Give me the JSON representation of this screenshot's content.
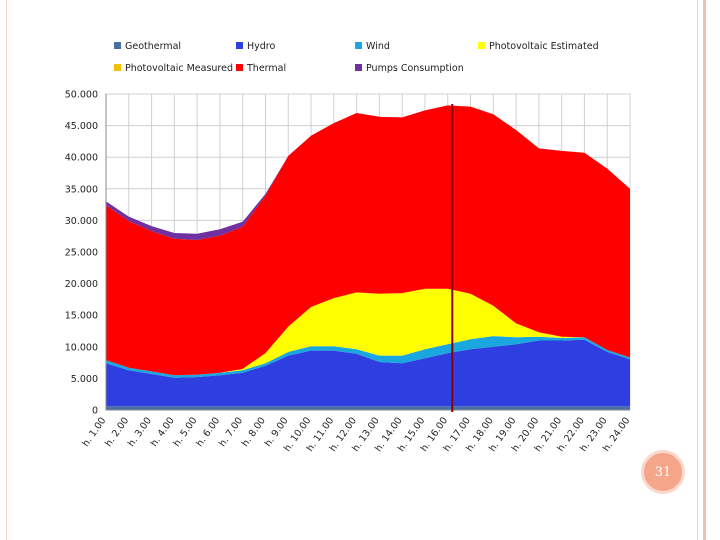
{
  "page_number": "31",
  "chart_data": {
    "type": "area",
    "stacked": true,
    "ylim": [
      0,
      50000
    ],
    "y_ticks": [
      "0",
      "5.000",
      "10.000",
      "15.000",
      "20.000",
      "25.000",
      "30.000",
      "35.000",
      "40.000",
      "45.000",
      "50.000"
    ],
    "y_tick_values": [
      0,
      5000,
      10000,
      15000,
      20000,
      25000,
      30000,
      35000,
      40000,
      45000,
      50000
    ],
    "x_labels": [
      "h. 1.00",
      "h. 2.00",
      "h. 3.00",
      "h. 4.00",
      "h. 5.00",
      "h. 6.00",
      "h. 7.00",
      "h. 8.00",
      "h. 9.00",
      "h. 10.00",
      "h. 11.00",
      "h. 12.00",
      "h. 13.00",
      "h. 14.00",
      "h. 15.00",
      "h. 16.00",
      "h. 17.00",
      "h. 18.00",
      "h. 19.00",
      "h. 20.00",
      "h. 21.00",
      "h. 22.00",
      "h. 23.00",
      "h. 24.00"
    ],
    "x": [
      1,
      2,
      3,
      4,
      5,
      6,
      7,
      8,
      9,
      10,
      11,
      12,
      13,
      14,
      15,
      16,
      17,
      18,
      19,
      20,
      21,
      22,
      23,
      24
    ],
    "marker_line_x": 16.2,
    "marker_color": "#8b0000",
    "grid": true,
    "legend": [
      {
        "name": "Geothermal",
        "color": "#4a6fa5"
      },
      {
        "name": "Hydro",
        "color": "#2f3ee0"
      },
      {
        "name": "Wind",
        "color": "#1aa7e0"
      },
      {
        "name": "Photovoltaic Estimated",
        "color": "#ffff00"
      },
      {
        "name": "Photovoltaic Measured",
        "color": "#f2c200"
      },
      {
        "name": "Thermal",
        "color": "#ff0000"
      },
      {
        "name": "Pumps Consumption",
        "color": "#7030a0"
      }
    ],
    "series": [
      {
        "name": "Geothermal",
        "color": "#4a6fa5",
        "values": [
          600,
          600,
          600,
          600,
          600,
          600,
          600,
          600,
          600,
          600,
          600,
          600,
          600,
          600,
          600,
          600,
          600,
          600,
          600,
          600,
          600,
          600,
          600,
          600
        ]
      },
      {
        "name": "Hydro",
        "color": "#2f3ee0",
        "values": [
          6800,
          5700,
          5100,
          4500,
          4600,
          4900,
          5300,
          6400,
          8000,
          8800,
          8800,
          8300,
          7000,
          6800,
          7600,
          8400,
          9000,
          9400,
          9800,
          10400,
          10400,
          10500,
          8600,
          7400
        ]
      },
      {
        "name": "Wind",
        "color": "#1aa7e0",
        "values": [
          500,
          400,
          400,
          400,
          400,
          400,
          400,
          400,
          600,
          700,
          700,
          700,
          1000,
          1200,
          1400,
          1400,
          1600,
          1700,
          1100,
          600,
          400,
          400,
          300,
          300
        ]
      },
      {
        "name": "Photovoltaic Estimated",
        "color": "#ffff00",
        "values": [
          0,
          0,
          0,
          0,
          0,
          0,
          200,
          1600,
          4000,
          6200,
          7600,
          9000,
          9800,
          9900,
          9600,
          8800,
          7200,
          4800,
          2200,
          700,
          200,
          0,
          0,
          0
        ]
      },
      {
        "name": "Photovoltaic Measured",
        "color": "#f2c200",
        "values": [
          0,
          0,
          0,
          0,
          0,
          0,
          0,
          0,
          0,
          0,
          0,
          0,
          0,
          0,
          0,
          0,
          0,
          0,
          0,
          0,
          0,
          0,
          0,
          0
        ]
      },
      {
        "name": "Thermal",
        "color": "#ff0000",
        "values": [
          24500,
          23200,
          22200,
          21600,
          21300,
          21700,
          22500,
          24900,
          27000,
          27100,
          27700,
          28400,
          28000,
          27800,
          28200,
          29000,
          29600,
          30300,
          30600,
          29100,
          29400,
          29200,
          28700,
          26700
        ]
      },
      {
        "name": "Pumps Consumption",
        "color": "#7030a0",
        "values": [
          600,
          700,
          800,
          900,
          1000,
          1000,
          800,
          300,
          0,
          0,
          0,
          0,
          0,
          0,
          0,
          0,
          0,
          0,
          0,
          0,
          0,
          0,
          0,
          0
        ]
      }
    ]
  }
}
